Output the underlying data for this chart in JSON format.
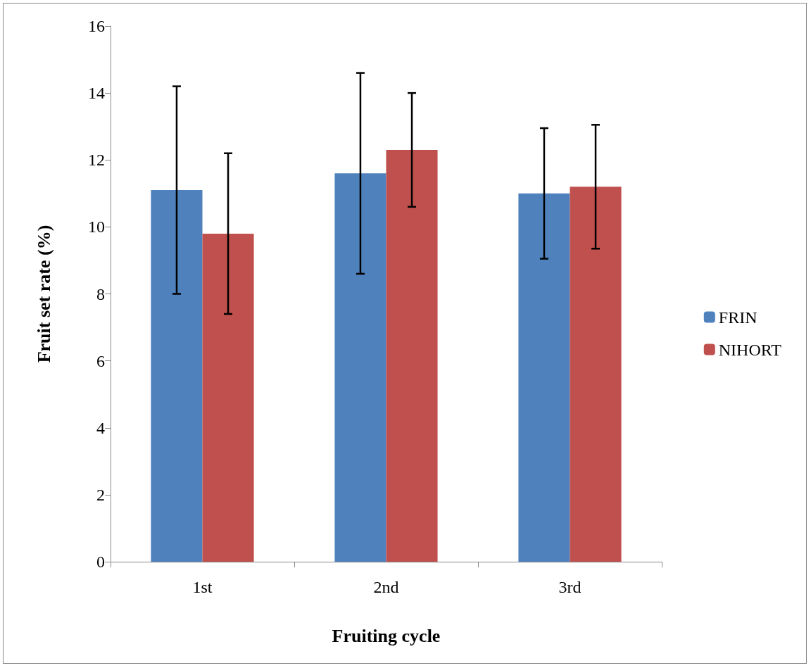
{
  "chart_data": {
    "type": "bar",
    "xlabel": "Fruiting cycle",
    "ylabel": "Fruit set rate (%)",
    "categories": [
      "1st",
      "2nd",
      "3rd"
    ],
    "series": [
      {
        "name": "FRIN",
        "color": "#4f81bd",
        "values": [
          11.1,
          11.6,
          11.0
        ],
        "errors": [
          [
            8.0,
            14.2
          ],
          [
            8.6,
            14.6
          ],
          [
            9.05,
            12.95
          ]
        ]
      },
      {
        "name": "NIHORT",
        "color": "#c0504d",
        "values": [
          9.8,
          12.3,
          11.2
        ],
        "errors": [
          [
            7.4,
            12.2
          ],
          [
            10.6,
            14.0
          ],
          [
            9.35,
            13.05
          ]
        ]
      }
    ],
    "ylim": [
      0,
      16
    ],
    "yticks": [
      0,
      2,
      4,
      6,
      8,
      10,
      12,
      14,
      16
    ],
    "grid": false,
    "legend": "right"
  }
}
